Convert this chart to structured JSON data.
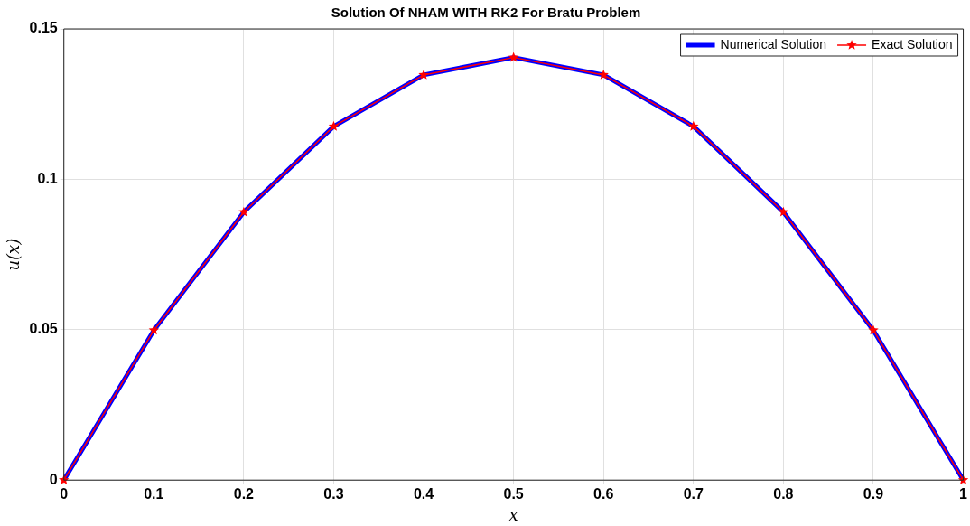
{
  "chart_data": {
    "type": "line",
    "title": "Solution Of NHAM WITH RK2 For Bratu Problem",
    "xlabel": "x",
    "ylabel": "u(x)",
    "x": [
      0,
      0.1,
      0.2,
      0.3,
      0.4,
      0.5,
      0.6,
      0.7,
      0.8,
      0.9,
      1
    ],
    "series": [
      {
        "name": "Numerical Solution",
        "color": "#0000ff",
        "marker": "none",
        "values": [
          0,
          0.0498,
          0.0891,
          0.1176,
          0.1347,
          0.1405,
          0.1347,
          0.1176,
          0.0891,
          0.0498,
          0
        ]
      },
      {
        "name": "Exact Solution",
        "color": "#ff0000",
        "marker": "star",
        "values": [
          0,
          0.0498,
          0.0891,
          0.1176,
          0.1347,
          0.1405,
          0.1347,
          0.1176,
          0.0891,
          0.0498,
          0
        ]
      }
    ],
    "xlim": [
      0,
      1
    ],
    "xticks": [
      0,
      0.1,
      0.2,
      0.3,
      0.4,
      0.5,
      0.6,
      0.7,
      0.8,
      0.9,
      1
    ],
    "ylim": [
      0,
      0.15
    ],
    "yticks": [
      0,
      0.05,
      0.1,
      0.15
    ],
    "grid": true,
    "legend": "top right",
    "line_style": "solid"
  }
}
